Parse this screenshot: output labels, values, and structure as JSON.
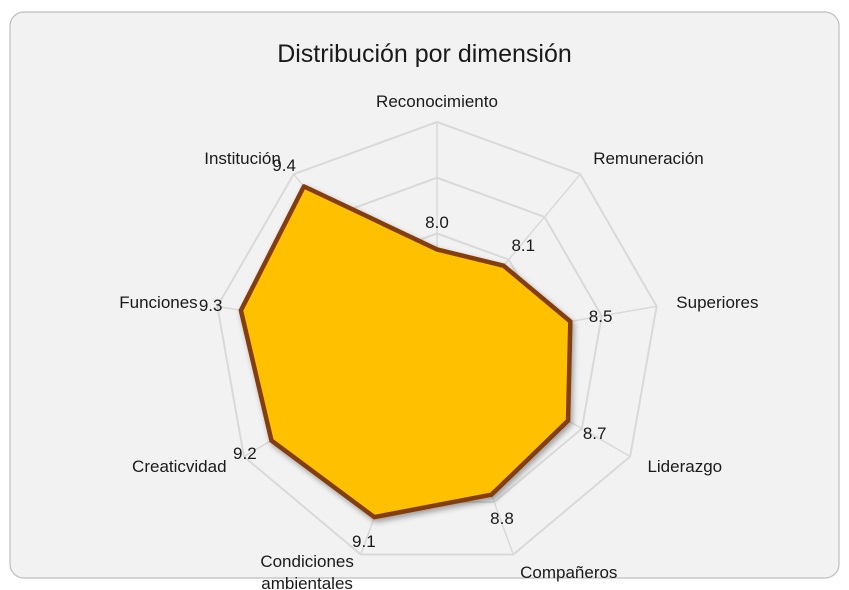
{
  "chart_data": {
    "type": "radar",
    "title": "Distribución por dimensión",
    "categories": [
      "Reconocimiento",
      "Remuneración",
      "Superiores",
      "Liderazgo",
      "Compañeros",
      "Condiciones\nambientales",
      "Creaticvidad",
      "Funciones",
      "Institución"
    ],
    "values": [
      8.0,
      8.1,
      8.5,
      8.7,
      8.8,
      9.1,
      9.2,
      9.3,
      9.4
    ],
    "value_labels": [
      "8.0",
      "8.1",
      "8.5",
      "8.7",
      "8.8",
      "9.1",
      "9.2",
      "9.3",
      "9.4"
    ],
    "color": "#ffc000",
    "line_color": "#843c0c",
    "ylim": [
      6.8,
      9.6
    ],
    "yticks": [
      6.8,
      7.5,
      8.2,
      8.9,
      9.6
    ],
    "grid": true
  }
}
